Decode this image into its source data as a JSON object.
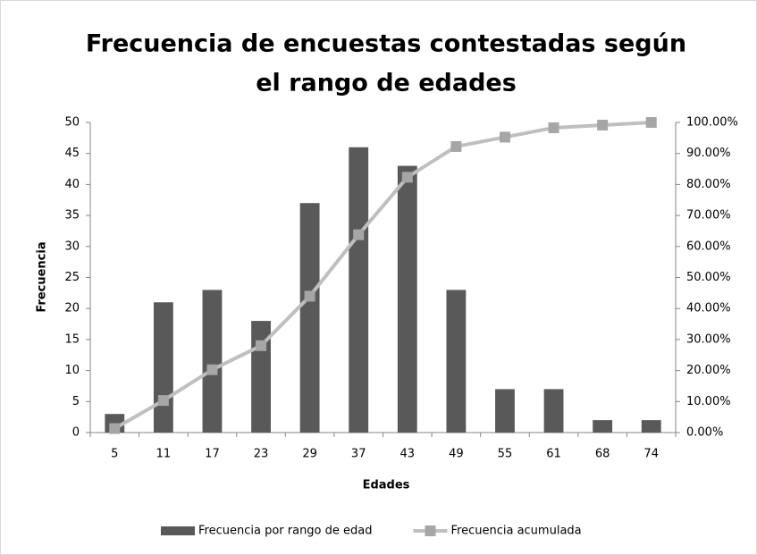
{
  "chart_data": {
    "type": "bar",
    "title": [
      "Frecuencia de encuestas contestadas según",
      "el rango de edades"
    ],
    "x_label": "Edades",
    "y_label": "Frecuencia",
    "categories": [
      "5",
      "11",
      "17",
      "23",
      "29",
      "37",
      "43",
      "49",
      "55",
      "61",
      "68",
      "74"
    ],
    "series": [
      {
        "name": "Frecuencia por rango de edad",
        "type": "bar",
        "color": "#595959",
        "values": [
          3,
          21,
          23,
          18,
          37,
          46,
          43,
          23,
          7,
          7,
          2,
          2
        ]
      },
      {
        "name": "Frecuencia acumulada",
        "type": "line",
        "axis": "y2",
        "color": "#bfbfbf",
        "marker_color": "#a6a6a6",
        "values": [
          1.29,
          10.34,
          20.26,
          28.02,
          43.97,
          63.79,
          82.33,
          92.24,
          95.26,
          98.28,
          99.14,
          100
        ]
      }
    ],
    "ylim": [
      0,
      50
    ],
    "yticks": [
      0,
      5,
      10,
      15,
      20,
      25,
      30,
      35,
      40,
      45,
      50
    ],
    "y2lim": [
      0,
      100
    ],
    "y2ticks": [
      {
        "value": 0,
        "label": "0.00%"
      },
      {
        "value": 10,
        "label": "10.00%"
      },
      {
        "value": 20,
        "label": "20.00%"
      },
      {
        "value": 30,
        "label": "30.00%"
      },
      {
        "value": 40,
        "label": "40.00%"
      },
      {
        "value": 50,
        "label": "50.00%"
      },
      {
        "value": 60,
        "label": "60.00%"
      },
      {
        "value": 70,
        "label": "70.00%"
      },
      {
        "value": 80,
        "label": "80.00%"
      },
      {
        "value": 90,
        "label": "90.00%"
      },
      {
        "value": 100,
        "label": "100.00%"
      }
    ],
    "grid": false,
    "legend": "bottom"
  }
}
